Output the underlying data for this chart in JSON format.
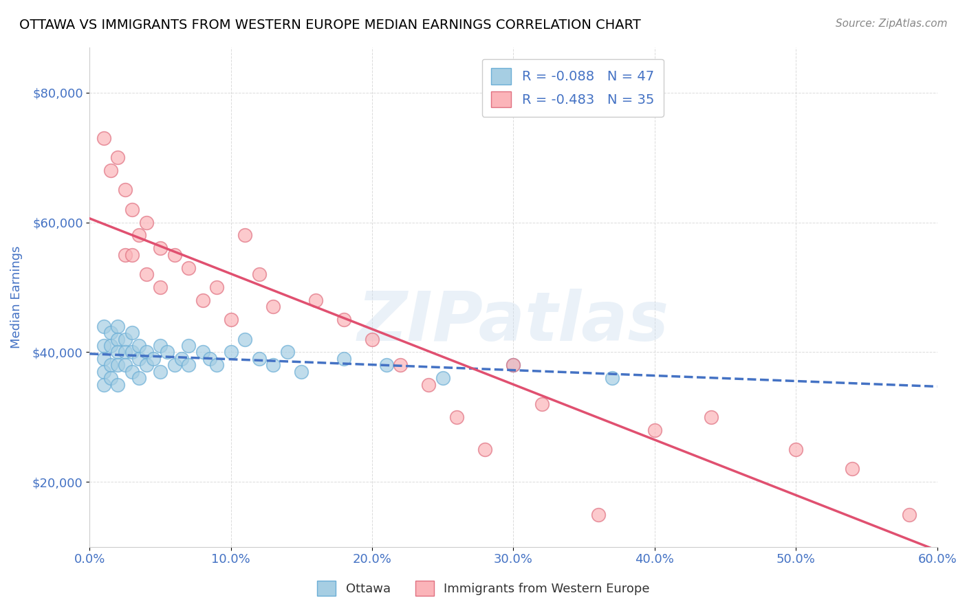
{
  "title": "OTTAWA VS IMMIGRANTS FROM WESTERN EUROPE MEDIAN EARNINGS CORRELATION CHART",
  "source": "Source: ZipAtlas.com",
  "xlabel": "",
  "ylabel": "Median Earnings",
  "xlim": [
    0.0,
    0.6
  ],
  "ylim": [
    10000,
    87000
  ],
  "yticks": [
    20000,
    40000,
    60000,
    80000
  ],
  "ytick_labels": [
    "$20,000",
    "$40,000",
    "$60,000",
    "$80,000"
  ],
  "xticks": [
    0.0,
    0.1,
    0.2,
    0.3,
    0.4,
    0.5,
    0.6
  ],
  "xtick_labels": [
    "0.0%",
    "10.0%",
    "20.0%",
    "30.0%",
    "40.0%",
    "50.0%",
    "60.0%"
  ],
  "blue_R": -0.088,
  "blue_N": 47,
  "pink_R": -0.483,
  "pink_N": 35,
  "blue_color": "#6baed6",
  "pink_color": "#fb9a99",
  "blue_scatter_color": "#a6cee3",
  "pink_scatter_color": "#fbb4b9",
  "watermark": "ZIPatlas",
  "legend_series": [
    {
      "label": "Ottawa",
      "color": "#a6cee3"
    },
    {
      "label": "Immigrants from Western Europe",
      "color": "#fbb4b9"
    }
  ],
  "blue_scatter_x": [
    0.01,
    0.01,
    0.01,
    0.01,
    0.01,
    0.015,
    0.015,
    0.015,
    0.015,
    0.02,
    0.02,
    0.02,
    0.02,
    0.02,
    0.025,
    0.025,
    0.025,
    0.03,
    0.03,
    0.03,
    0.035,
    0.035,
    0.035,
    0.04,
    0.04,
    0.045,
    0.05,
    0.05,
    0.055,
    0.06,
    0.065,
    0.07,
    0.07,
    0.08,
    0.085,
    0.09,
    0.1,
    0.11,
    0.12,
    0.13,
    0.14,
    0.15,
    0.18,
    0.21,
    0.25,
    0.3,
    0.37
  ],
  "blue_scatter_y": [
    44000,
    41000,
    39000,
    37000,
    35000,
    43000,
    41000,
    38000,
    36000,
    44000,
    42000,
    40000,
    38000,
    35000,
    42000,
    40000,
    38000,
    43000,
    40000,
    37000,
    41000,
    39000,
    36000,
    40000,
    38000,
    39000,
    41000,
    37000,
    40000,
    38000,
    39000,
    41000,
    38000,
    40000,
    39000,
    38000,
    40000,
    42000,
    39000,
    38000,
    40000,
    37000,
    39000,
    38000,
    36000,
    38000,
    36000
  ],
  "pink_scatter_x": [
    0.01,
    0.015,
    0.02,
    0.025,
    0.025,
    0.03,
    0.03,
    0.035,
    0.04,
    0.04,
    0.05,
    0.05,
    0.06,
    0.07,
    0.08,
    0.09,
    0.1,
    0.11,
    0.12,
    0.13,
    0.16,
    0.18,
    0.2,
    0.22,
    0.24,
    0.26,
    0.28,
    0.3,
    0.32,
    0.36,
    0.4,
    0.44,
    0.5,
    0.54,
    0.58
  ],
  "pink_scatter_y": [
    73000,
    68000,
    70000,
    65000,
    55000,
    62000,
    55000,
    58000,
    60000,
    52000,
    56000,
    50000,
    55000,
    53000,
    48000,
    50000,
    45000,
    58000,
    52000,
    47000,
    48000,
    45000,
    42000,
    38000,
    35000,
    30000,
    25000,
    38000,
    32000,
    15000,
    28000,
    30000,
    25000,
    22000,
    15000
  ],
  "background_color": "#ffffff",
  "grid_color": "#cccccc",
  "title_color": "#000000",
  "axis_label_color": "#4472c4",
  "tick_label_color": "#4472c4",
  "legend_R_color": "#4472c4",
  "legend_N_color": "#4472c4"
}
